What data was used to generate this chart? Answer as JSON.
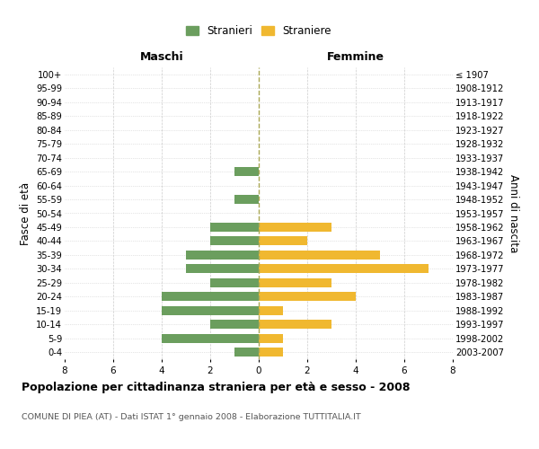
{
  "age_groups": [
    "0-4",
    "5-9",
    "10-14",
    "15-19",
    "20-24",
    "25-29",
    "30-34",
    "35-39",
    "40-44",
    "45-49",
    "50-54",
    "55-59",
    "60-64",
    "65-69",
    "70-74",
    "75-79",
    "80-84",
    "85-89",
    "90-94",
    "95-99",
    "100+"
  ],
  "birth_years": [
    "2003-2007",
    "1998-2002",
    "1993-1997",
    "1988-1992",
    "1983-1987",
    "1978-1982",
    "1973-1977",
    "1968-1972",
    "1963-1967",
    "1958-1962",
    "1953-1957",
    "1948-1952",
    "1943-1947",
    "1938-1942",
    "1933-1937",
    "1928-1932",
    "1923-1927",
    "1918-1922",
    "1913-1917",
    "1908-1912",
    "≤ 1907"
  ],
  "stranieri": [
    1,
    4,
    2,
    4,
    4,
    2,
    3,
    3,
    2,
    2,
    0,
    1,
    0,
    1,
    0,
    0,
    0,
    0,
    0,
    0,
    0
  ],
  "straniere": [
    1,
    1,
    3,
    1,
    4,
    3,
    7,
    5,
    2,
    3,
    0,
    0,
    0,
    0,
    0,
    0,
    0,
    0,
    0,
    0,
    0
  ],
  "color_stranieri": "#6b9e5e",
  "color_straniere": "#f0b830",
  "label_maschi": "Maschi",
  "label_femmine": "Femmine",
  "ylabel_left": "Fasce di età",
  "ylabel_right": "Anni di nascita",
  "title": "Popolazione per cittadinanza straniera per età e sesso - 2008",
  "subtitle": "COMUNE DI PIEA (AT) - Dati ISTAT 1° gennaio 2008 - Elaborazione TUTTITALIA.IT",
  "legend_stranieri": "Stranieri",
  "legend_straniere": "Straniere",
  "xlim": 8,
  "background_color": "#ffffff",
  "grid_color": "#cccccc",
  "grid_color_y": "#cccccc"
}
